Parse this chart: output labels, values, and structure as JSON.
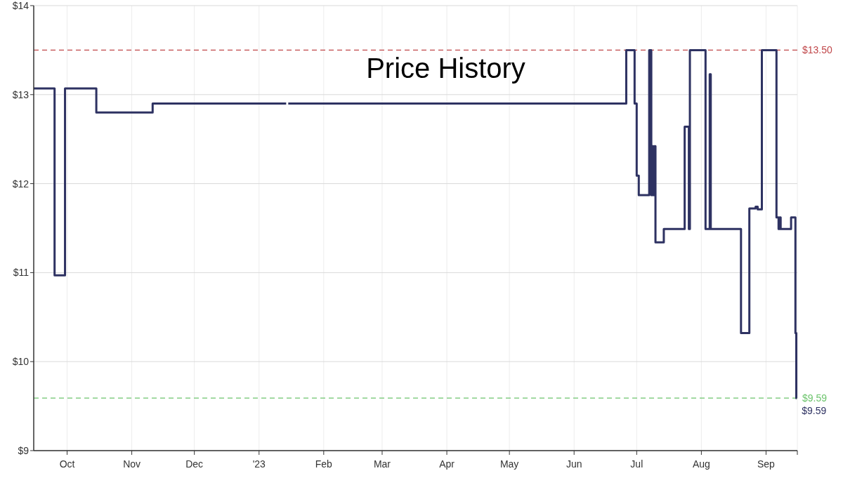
{
  "chart_data": {
    "type": "step",
    "title": "Price History",
    "x": [
      "2022-09-15",
      "2022-09-25",
      "2022-09-30",
      "2022-10-15",
      "2022-11-11",
      "2023-01-14",
      "2023-01-14T12:00",
      "2023-01-15",
      "2023-06-26",
      "2023-06-30",
      "2023-07-01",
      "2023-07-02",
      "2023-07-07",
      "2023-07-08",
      "2023-07-08T12:00",
      "2023-07-09",
      "2023-07-09T12:00",
      "2023-07-10",
      "2023-07-14",
      "2023-07-24",
      "2023-07-26",
      "2023-07-26T12:00",
      "2023-08-03",
      "2023-08-05",
      "2023-08-05T12:00",
      "2023-08-20",
      "2023-08-24",
      "2023-08-27",
      "2023-08-28",
      "2023-08-30",
      "2023-09-06",
      "2023-09-07",
      "2023-09-07T12:00",
      "2023-09-08",
      "2023-09-13",
      "2023-09-15T02:00",
      "2023-09-15T12:00",
      "2023-09-15T18:00"
    ],
    "series": [
      {
        "color": "#2e3262",
        "values": [
          13.07,
          10.97,
          13.07,
          12.8,
          12.9,
          12.9,
          null,
          12.9,
          13.5,
          12.9,
          12.09,
          11.87,
          13.5,
          11.87,
          12.42,
          11.87,
          12.42,
          11.34,
          11.49,
          12.64,
          11.49,
          13.5,
          11.49,
          13.23,
          11.49,
          10.32,
          11.72,
          11.74,
          11.71,
          13.5,
          11.62,
          11.49,
          11.62,
          11.49,
          11.62,
          10.32,
          9.59,
          9.59
        ]
      }
    ],
    "xlim": [
      "2022-09-15",
      "2023-09-16"
    ],
    "xticks": [
      {
        "value": "2022-10-01",
        "label": "Oct"
      },
      {
        "value": "2022-11-01",
        "label": "Nov"
      },
      {
        "value": "2022-12-01",
        "label": "Dec"
      },
      {
        "value": "2023-01-01",
        "label": "'23"
      },
      {
        "value": "2023-02-01",
        "label": "Feb"
      },
      {
        "value": "2023-03-01",
        "label": "Mar"
      },
      {
        "value": "2023-04-01",
        "label": "Apr"
      },
      {
        "value": "2023-05-01",
        "label": "May"
      },
      {
        "value": "2023-06-01",
        "label": "Jun"
      },
      {
        "value": "2023-07-01",
        "label": "Jul"
      },
      {
        "value": "2023-08-01",
        "label": "Aug"
      },
      {
        "value": "2023-09-01",
        "label": "Sep"
      },
      {
        "value": "2023-09-16",
        "label": null
      }
    ],
    "ylim": [
      9,
      14
    ],
    "yticks": [
      {
        "value": 9,
        "label": "$9"
      },
      {
        "value": 10,
        "label": "$10"
      },
      {
        "value": 11,
        "label": "$11"
      },
      {
        "value": 12,
        "label": "$12"
      },
      {
        "value": 13,
        "label": "$13"
      },
      {
        "value": 14,
        "label": "$14"
      }
    ],
    "ref_lines": [
      {
        "axis": "y",
        "value": 13.5,
        "label": "$13.50",
        "color": "#c0474a",
        "line_style": "dashed"
      },
      {
        "axis": "y",
        "value": 9.59,
        "label": "$9.59",
        "color": "#6cc46c",
        "line_style": "dashed"
      }
    ],
    "annotations": [
      {
        "text": "$9.59",
        "x": "2023-09-15T18:00",
        "y": 9.59
      }
    ],
    "grid": true,
    "marker": "none",
    "line_style": "solid"
  }
}
